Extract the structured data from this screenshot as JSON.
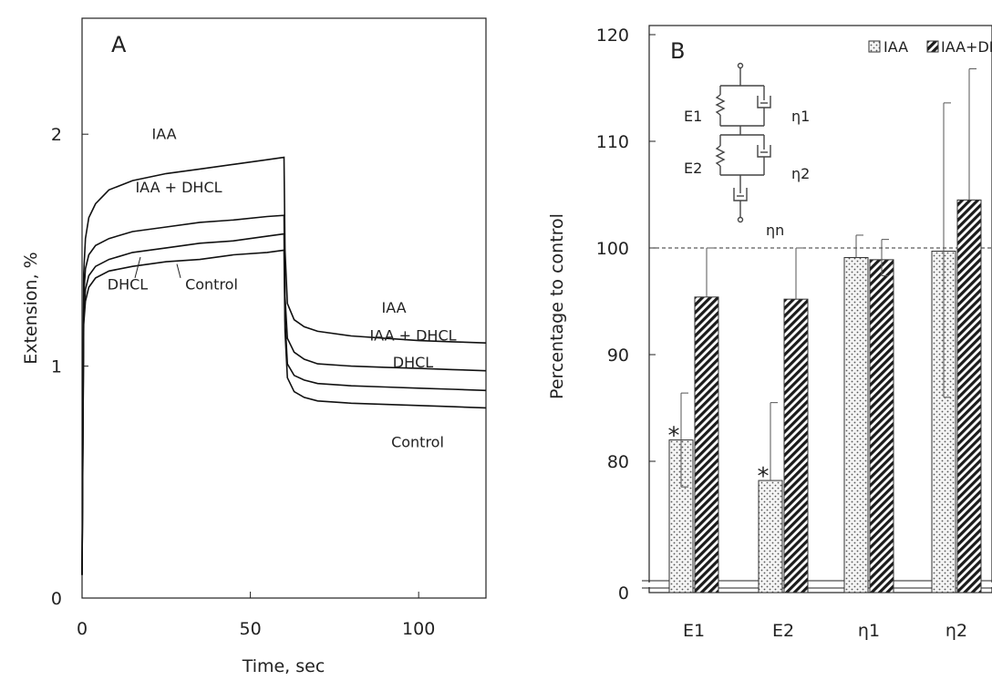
{
  "chart_data": [
    {
      "panel": "A",
      "type": "line",
      "xlabel": "Time, sec",
      "ylabel": "Extension, %",
      "xlim": [
        0,
        120
      ],
      "ylim": [
        0,
        2.5
      ],
      "xticks": [
        0,
        50,
        100
      ],
      "yticks": [
        0,
        1,
        2
      ],
      "grid": false,
      "load_removed_at": 60,
      "series": [
        {
          "name": "IAA",
          "end_labels": [
            "IAA",
            "IAA"
          ],
          "x": [
            0,
            0.5,
            1,
            2,
            4,
            8,
            15,
            25,
            35,
            45,
            55,
            60,
            60.3,
            61,
            63,
            66,
            70,
            80,
            90,
            100,
            110,
            120
          ],
          "y": [
            0.1,
            1.4,
            1.55,
            1.64,
            1.7,
            1.76,
            1.8,
            1.83,
            1.85,
            1.87,
            1.89,
            1.9,
            1.5,
            1.27,
            1.2,
            1.17,
            1.15,
            1.13,
            1.12,
            1.11,
            1.105,
            1.1
          ]
        },
        {
          "name": "IAA + DHCL",
          "end_labels": [
            "IAA + DHCL",
            "IAA + DHCL"
          ],
          "x": [
            0,
            0.5,
            1,
            2,
            4,
            8,
            15,
            25,
            35,
            45,
            55,
            60,
            60.3,
            61,
            63,
            66,
            70,
            80,
            90,
            100,
            110,
            120
          ],
          "y": [
            0.1,
            1.3,
            1.42,
            1.48,
            1.52,
            1.55,
            1.58,
            1.6,
            1.62,
            1.63,
            1.645,
            1.65,
            1.3,
            1.12,
            1.06,
            1.03,
            1.01,
            1.0,
            0.995,
            0.99,
            0.985,
            0.98
          ]
        },
        {
          "name": "DHCL",
          "end_labels": [
            "DHCL",
            "DHCL"
          ],
          "x": [
            0,
            0.5,
            1,
            2,
            4,
            8,
            15,
            25,
            35,
            45,
            55,
            60,
            60.3,
            61,
            63,
            66,
            70,
            80,
            90,
            100,
            110,
            120
          ],
          "y": [
            0.1,
            1.22,
            1.33,
            1.39,
            1.43,
            1.46,
            1.49,
            1.51,
            1.53,
            1.54,
            1.56,
            1.57,
            1.2,
            1.01,
            0.96,
            0.94,
            0.925,
            0.915,
            0.91,
            0.905,
            0.9,
            0.895
          ]
        },
        {
          "name": "Control",
          "end_labels": [
            "Control",
            "Control"
          ],
          "x": [
            0,
            0.5,
            1,
            2,
            4,
            8,
            15,
            25,
            35,
            45,
            55,
            60,
            60.3,
            61,
            63,
            66,
            70,
            80,
            90,
            100,
            110,
            120
          ],
          "y": [
            0.1,
            1.18,
            1.28,
            1.34,
            1.38,
            1.41,
            1.43,
            1.45,
            1.46,
            1.48,
            1.49,
            1.5,
            1.15,
            0.95,
            0.89,
            0.865,
            0.85,
            0.84,
            0.835,
            0.83,
            0.825,
            0.82
          ]
        }
      ]
    },
    {
      "panel": "B",
      "type": "bar",
      "ylabel": "Percentage to control",
      "categories": [
        "E1",
        "E2",
        "η1",
        "η2"
      ],
      "yticks": [
        0,
        80,
        90,
        100,
        110,
        120
      ],
      "ylim": [
        0,
        120
      ],
      "axis_break": "between 0 and ~73",
      "reference_line": 100,
      "legend_position": "top-right",
      "series": [
        {
          "name": "IAA",
          "pattern": "dotted",
          "values": [
            82,
            78.2,
            99.1,
            99.7
          ],
          "error_upper": [
            86.4,
            85.5,
            101.2,
            113.6
          ],
          "error_lower": [
            77.6,
            null,
            null,
            86
          ]
        },
        {
          "name": "IAA+DHCL",
          "pattern": "hatched",
          "values": [
            95.4,
            95.2,
            98.9,
            104.5
          ],
          "error_upper": [
            100,
            100,
            100.8,
            116.8
          ],
          "error_lower": [
            null,
            null,
            97.4,
            null
          ]
        }
      ],
      "significance_marks": [
        {
          "category": "E1",
          "series": "IAA",
          "mark": "*"
        },
        {
          "category": "E2",
          "series": "IAA",
          "mark": "*"
        }
      ],
      "inset_model_labels": [
        "E1",
        "η1",
        "E2",
        "η2",
        "ηn"
      ]
    }
  ]
}
